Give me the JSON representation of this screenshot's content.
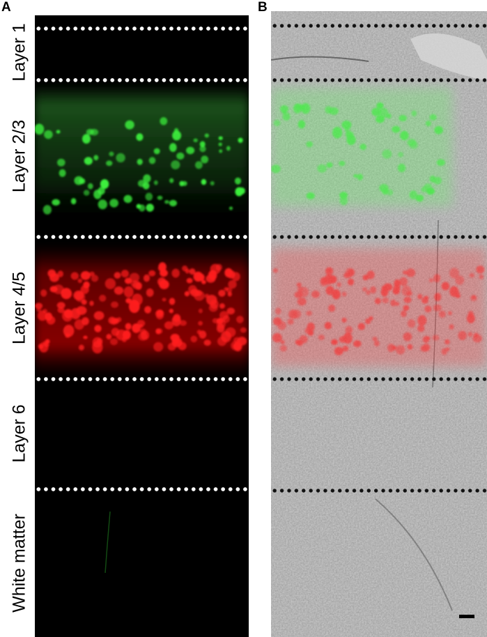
{
  "panels": {
    "a": {
      "letter": "A"
    },
    "b": {
      "letter": "B"
    }
  },
  "layers": [
    {
      "id": "layer1",
      "label": "Layer 1"
    },
    {
      "id": "layer23",
      "label": "Layer 2/3"
    },
    {
      "id": "layer45",
      "label": "Layer 4/5"
    },
    {
      "id": "layer6",
      "label": "Layer 6"
    },
    {
      "id": "white_matter",
      "label": "White matter"
    }
  ],
  "colors": {
    "green_fluorescence": "#3cf03c",
    "red_fluorescence": "#ff1e1e",
    "panel_a_background": "#000000",
    "panel_b_background": "#9c9c9c",
    "boundary_dots_a": "#ffffff",
    "boundary_dots_b": "#111111"
  }
}
